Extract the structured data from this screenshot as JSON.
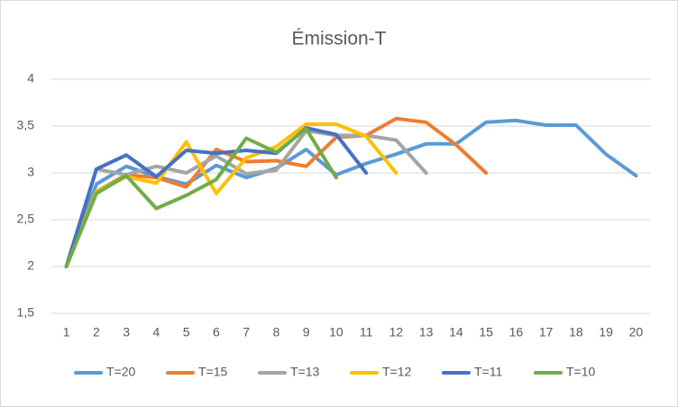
{
  "chart_data": {
    "type": "line",
    "title": "Émission-T",
    "categories": [
      "1",
      "2",
      "3",
      "4",
      "5",
      "6",
      "7",
      "8",
      "9",
      "10",
      "11",
      "12",
      "13",
      "14",
      "15",
      "16",
      "17",
      "18",
      "19",
      "20"
    ],
    "series": [
      {
        "name": "T=20",
        "color": "#5b9bd5",
        "values": [
          2,
          2.88,
          3.07,
          2.96,
          2.88,
          3.08,
          2.95,
          3.05,
          3.25,
          2.98,
          3.1,
          3.2,
          3.31,
          3.31,
          3.54,
          3.56,
          3.51,
          3.51,
          3.2,
          2.97
        ]
      },
      {
        "name": "T=15",
        "color": "#ed7d31",
        "values": [
          2,
          2.8,
          2.98,
          2.95,
          2.85,
          3.25,
          3.12,
          3.13,
          3.07,
          3.38,
          3.4,
          3.58,
          3.54,
          3.3,
          3.0,
          null,
          null,
          null,
          null,
          null
        ]
      },
      {
        "name": "T=13",
        "color": "#a5a5a5",
        "values": [
          2,
          3.04,
          2.98,
          3.07,
          3.0,
          3.18,
          2.99,
          3.03,
          3.45,
          3.4,
          3.4,
          3.35,
          3.0,
          null,
          null,
          null,
          null,
          null,
          null,
          null
        ]
      },
      {
        "name": "T=12",
        "color": "#ffc000",
        "values": [
          2,
          2.8,
          2.96,
          2.89,
          3.33,
          2.78,
          3.16,
          3.28,
          3.52,
          3.52,
          3.39,
          3.0,
          null,
          null,
          null,
          null,
          null,
          null,
          null,
          null
        ]
      },
      {
        "name": "T=11",
        "color": "#4472c4",
        "values": [
          2,
          3.04,
          3.19,
          2.96,
          3.24,
          3.21,
          3.24,
          3.21,
          3.48,
          3.41,
          3.0,
          null,
          null,
          null,
          null,
          null,
          null,
          null,
          null,
          null
        ]
      },
      {
        "name": "T=10",
        "color": "#70ad47",
        "values": [
          2,
          2.78,
          2.97,
          2.62,
          2.76,
          2.93,
          3.37,
          3.22,
          3.47,
          2.95,
          null,
          null,
          null,
          null,
          null,
          null,
          null,
          null,
          null,
          null
        ]
      }
    ],
    "ylim": [
      1.5,
      4
    ],
    "yticks": [
      {
        "value": 1.5,
        "label": "1,5"
      },
      2,
      {
        "value": 2.5,
        "label": "2,5"
      },
      3,
      {
        "value": 3.5,
        "label": "3,5"
      },
      4
    ],
    "grid": true,
    "legend": "bottom"
  }
}
